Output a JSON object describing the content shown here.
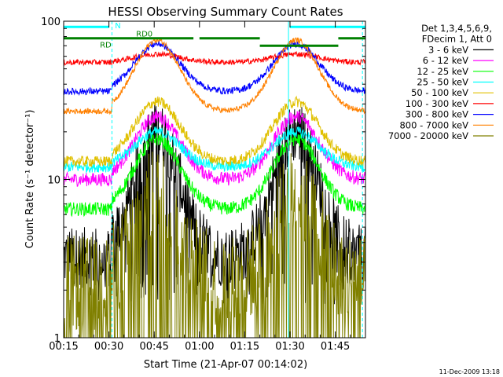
{
  "chart_data": {
    "type": "line",
    "title": "HESSI Observing Summary Count Rates",
    "xlabel": "Start Time (21-Apr-07 00:14:02)",
    "ylabel": "Count Rate (s⁻¹ detector⁻¹)",
    "y_scale": "log",
    "ylim": [
      1,
      100
    ],
    "xlim_minutes": [
      15,
      115
    ],
    "x_tick_labels": [
      "00:15",
      "00:30",
      "00:45",
      "01:00",
      "01:15",
      "01:30",
      "01:45"
    ],
    "x_tick_minutes": [
      15,
      30,
      45,
      60,
      75,
      90,
      105
    ],
    "y_tick_labels": [
      "1",
      "10",
      "100"
    ],
    "y_tick_values": [
      1,
      10,
      100
    ],
    "legend_header": [
      "Det 1,3,4,5,6,9,",
      "FDecim 1, Att 0"
    ],
    "legend_position": "right",
    "series": [
      {
        "name": "3 - 6 keV",
        "color": "#000000",
        "base": 3.2,
        "peak": 20,
        "noise": 0.45,
        "flat_before": 31,
        "flat_after": 106
      },
      {
        "name": "6 - 12 keV",
        "color": "#ff00ff",
        "base": 10,
        "peak": 25,
        "noise": 0.1,
        "flat_before": 31,
        "flat_after": 106
      },
      {
        "name": "12 - 25 keV",
        "color": "#00ff00",
        "base": 6.5,
        "peak": 18,
        "noise": 0.1,
        "flat_before": 31,
        "flat_after": 106
      },
      {
        "name": "25 - 50 keV",
        "color": "#00ffff",
        "base": 12,
        "peak": 20,
        "noise": 0.08,
        "flat_before": 31,
        "flat_after": 106
      },
      {
        "name": "50 - 100 keV",
        "color": "#e0c000",
        "base": 13,
        "peak": 31,
        "noise": 0.08,
        "flat_before": 31,
        "flat_after": 106
      },
      {
        "name": "100 - 300 keV",
        "color": "#ff0000",
        "base": 55,
        "peak": 62,
        "noise": 0.04,
        "flat_before": 31,
        "flat_after": 106
      },
      {
        "name": "300 - 800 keV",
        "color": "#0000ff",
        "base": 36,
        "peak": 72,
        "noise": 0.05,
        "flat_before": 31,
        "flat_after": 106
      },
      {
        "name": "800 - 7000 keV",
        "color": "#ff8000",
        "base": 27,
        "peak": 76,
        "noise": 0.04,
        "flat_before": 31,
        "flat_after": 106
      },
      {
        "name": "7000 - 20000 keV",
        "color": "#808000",
        "base": 2.2,
        "peak": 8,
        "noise": 0.7,
        "flat_before": 31,
        "flat_after": 106
      }
    ],
    "peaks_minutes": [
      46,
      92
    ],
    "peak_width_minutes": 12,
    "attenuator_bars": [
      {
        "label": "RD0",
        "color": "#008000",
        "y": 78,
        "start": 15,
        "end": 31
      },
      {
        "label": "",
        "color": "#008000",
        "y": 78,
        "start": 31,
        "end": 58
      },
      {
        "label": "",
        "color": "#008000",
        "y": 78,
        "start": 60,
        "end": 80
      },
      {
        "label": "",
        "color": "#008000",
        "y": 70,
        "start": 80,
        "end": 106
      },
      {
        "label": "",
        "color": "#008000",
        "y": 78,
        "start": 106,
        "end": 115
      }
    ],
    "annotations": [
      {
        "text": "RD0",
        "color": "#008000",
        "x_min": 39,
        "y": 80
      },
      {
        "text": "RD",
        "color": "#008000",
        "x_min": 27,
        "y": 68
      },
      {
        "text": "N",
        "color": "#00ffff",
        "x_min": 32,
        "y": 90
      }
    ],
    "night_bars": [
      {
        "color": "#00ffff",
        "y": 92,
        "start": 15,
        "end": 30
      },
      {
        "color": "#00ffff",
        "y": 92,
        "start": 90,
        "end": 115
      }
    ],
    "vertical_lines": [
      {
        "color": "#00ffff",
        "x_min": 15,
        "style": "dashed"
      },
      {
        "color": "#00ffff",
        "x_min": 31,
        "style": "dashed"
      },
      {
        "color": "#00ffff",
        "x_min": 89.5,
        "style": "solid"
      },
      {
        "color": "#00ffff",
        "x_min": 114,
        "style": "dashed"
      }
    ]
  },
  "footer": "11-Dec-2009 13:18"
}
